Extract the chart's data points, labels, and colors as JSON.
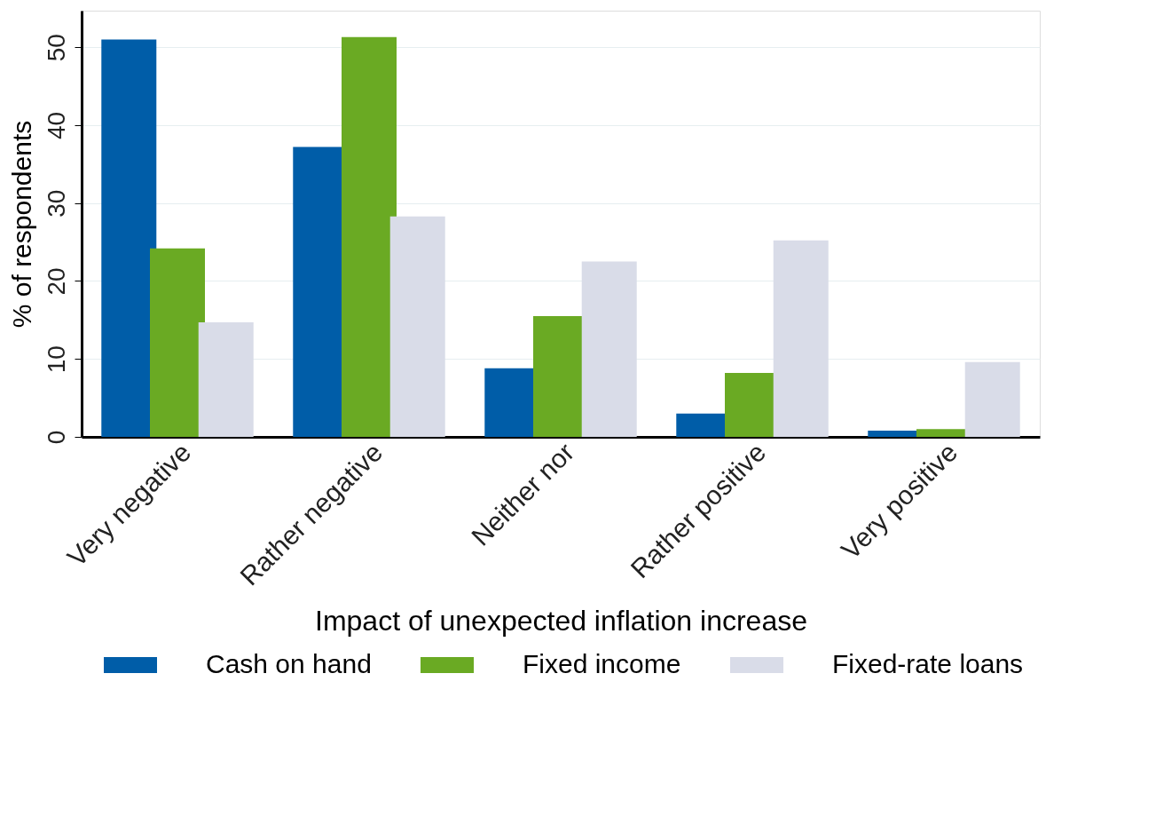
{
  "chart_data": {
    "type": "bar",
    "xlabel": "Impact of unexpected inflation increase",
    "ylabel": "% of respondents",
    "categories": [
      "Very negative",
      "Rather negative",
      "Neither nor",
      "Rather positive",
      "Very positive"
    ],
    "series": [
      {
        "name": "Cash on hand",
        "color": "#005da8",
        "values": [
          51.0,
          37.2,
          8.8,
          3.0,
          0.8
        ]
      },
      {
        "name": "Fixed income",
        "color": "#6aaa23",
        "values": [
          24.2,
          51.3,
          15.5,
          8.2,
          1.0
        ]
      },
      {
        "name": "Fixed-rate loans",
        "color": "#d9dce8",
        "values": [
          14.7,
          28.3,
          22.5,
          25.2,
          9.6
        ]
      }
    ],
    "ylim": [
      0,
      54.7
    ],
    "yticks": [
      0,
      10,
      20,
      30,
      40,
      50
    ],
    "grid": "y",
    "legend": "bottom"
  }
}
